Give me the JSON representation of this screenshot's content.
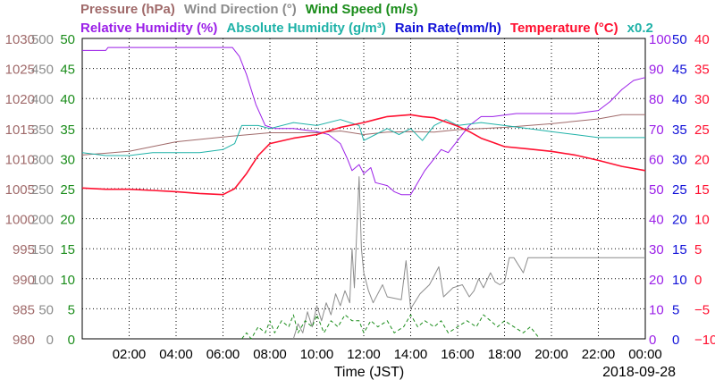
{
  "header": {
    "row1": [
      {
        "text": "Pressure (hPa)",
        "color": "#a06a6a"
      },
      {
        "text": "Wind Direction (°)",
        "color": "#8c8c8c"
      },
      {
        "text": "Wind Speed (m/s)",
        "color": "#1a8c1a"
      }
    ],
    "row2": [
      {
        "text": "Relative Humidity (%)",
        "color": "#9b1fe8"
      },
      {
        "text": "Absolute Humidity (g/m³)",
        "color": "#1fb2a8"
      },
      {
        "text": "Rain Rate(mm/h)",
        "color": "#1010d8"
      },
      {
        "text": "Temperature (°C)",
        "color": "#ff1030"
      },
      {
        "text": "x0.2",
        "color": "#1fb2a8"
      }
    ]
  },
  "chart_data": {
    "type": "line",
    "xlabel": "Time (JST)",
    "date": "2018-09-28",
    "x_ticks": [
      "02:00",
      "04:00",
      "06:00",
      "08:00",
      "10:00",
      "12:00",
      "14:00",
      "16:00",
      "18:00",
      "20:00",
      "22:00",
      "00:00"
    ],
    "x_range_hours": [
      0,
      24
    ],
    "left_axes": [
      {
        "name": "pressure",
        "color": "#a06a6a",
        "ticks": [
          980,
          985,
          990,
          995,
          1000,
          1005,
          1010,
          1015,
          1020,
          1025,
          1030
        ],
        "range": [
          980,
          1030
        ]
      },
      {
        "name": "wind_direction",
        "color": "#8c8c8c",
        "ticks": [
          0,
          50,
          100,
          150,
          200,
          250,
          300,
          350,
          400,
          450,
          500
        ],
        "range": [
          0,
          500
        ]
      },
      {
        "name": "wind_speed",
        "color": "#1a8c1a",
        "ticks": [
          0,
          5,
          10,
          15,
          20,
          25,
          30,
          35,
          40,
          45,
          50
        ],
        "range": [
          0,
          50
        ]
      }
    ],
    "right_axes": [
      {
        "name": "relative_humidity",
        "color": "#9b1fe8",
        "ticks": [
          0,
          10,
          20,
          30,
          40,
          50,
          60,
          70,
          80,
          90,
          100
        ],
        "range": [
          0,
          100
        ]
      },
      {
        "name": "rain_rate",
        "color": "#1010d8",
        "ticks": [
          0,
          5,
          10,
          15,
          20,
          25,
          30,
          35,
          40,
          45,
          50
        ],
        "range": [
          0,
          50
        ]
      },
      {
        "name": "temperature",
        "color": "#ff1030",
        "ticks": [
          "−10",
          "−5",
          "0",
          "5",
          "10",
          "15",
          "20",
          "25",
          "30",
          "35",
          "40"
        ],
        "range": [
          -10,
          40
        ]
      }
    ],
    "series": [
      {
        "name": "Pressure (hPa)",
        "color": "#a06a6a",
        "points": [
          [
            0.0,
            1010.6
          ],
          [
            2.0,
            1011.2
          ],
          [
            4.0,
            1012.8
          ],
          [
            6.0,
            1013.6
          ],
          [
            8.0,
            1014.3
          ],
          [
            10.0,
            1014.3
          ],
          [
            11.0,
            1014.6
          ],
          [
            12.0,
            1014.0
          ],
          [
            13.0,
            1014.4
          ],
          [
            14.0,
            1014.5
          ],
          [
            15.0,
            1014.4
          ],
          [
            16.0,
            1014.8
          ],
          [
            18.0,
            1015.2
          ],
          [
            20.0,
            1015.8
          ],
          [
            22.0,
            1016.6
          ],
          [
            23.0,
            1017.3
          ],
          [
            24.0,
            1017.3
          ]
        ]
      },
      {
        "name": "Relative Humidity (%)",
        "color": "#9b1fe8",
        "points": [
          [
            0.0,
            96
          ],
          [
            1.0,
            96
          ],
          [
            1.1,
            97
          ],
          [
            6.4,
            97
          ],
          [
            6.7,
            94
          ],
          [
            7.0,
            88
          ],
          [
            7.4,
            78
          ],
          [
            7.8,
            71
          ],
          [
            8.2,
            70
          ],
          [
            9.0,
            70
          ],
          [
            10.0,
            69
          ],
          [
            10.5,
            68
          ],
          [
            11.0,
            65
          ],
          [
            11.3,
            60
          ],
          [
            11.5,
            56
          ],
          [
            11.8,
            58
          ],
          [
            12.0,
            55
          ],
          [
            12.3,
            57
          ],
          [
            12.5,
            52
          ],
          [
            13.0,
            51
          ],
          [
            13.3,
            49
          ],
          [
            13.6,
            48
          ],
          [
            14.0,
            48
          ],
          [
            14.3,
            52
          ],
          [
            14.6,
            56
          ],
          [
            15.0,
            60
          ],
          [
            15.3,
            63
          ],
          [
            15.6,
            62
          ],
          [
            16.0,
            66
          ],
          [
            16.5,
            71
          ],
          [
            17.0,
            74
          ],
          [
            17.5,
            74
          ],
          [
            18.5,
            75
          ],
          [
            19.0,
            75
          ],
          [
            20.0,
            75
          ],
          [
            21.0,
            75
          ],
          [
            22.0,
            76
          ],
          [
            22.5,
            79
          ],
          [
            23.0,
            83
          ],
          [
            23.5,
            86
          ],
          [
            24.0,
            87
          ]
        ]
      },
      {
        "name": "Absolute Humidity (g/m³)",
        "color": "#1fb2a8",
        "points": [
          [
            0.0,
            62
          ],
          [
            1.0,
            61
          ],
          [
            2.0,
            61
          ],
          [
            3.0,
            62
          ],
          [
            4.0,
            62
          ],
          [
            5.0,
            62
          ],
          [
            6.0,
            63
          ],
          [
            6.5,
            65
          ],
          [
            6.8,
            71
          ],
          [
            7.5,
            71
          ],
          [
            8.0,
            70
          ],
          [
            9.0,
            72
          ],
          [
            10.0,
            71
          ],
          [
            11.0,
            73
          ],
          [
            11.8,
            71
          ],
          [
            12.0,
            66
          ],
          [
            12.5,
            68
          ],
          [
            13.0,
            70
          ],
          [
            13.5,
            68
          ],
          [
            14.0,
            70
          ],
          [
            14.5,
            66
          ],
          [
            15.0,
            71
          ],
          [
            15.5,
            73
          ],
          [
            16.0,
            71
          ],
          [
            17.0,
            72
          ],
          [
            18.0,
            71
          ],
          [
            19.0,
            70
          ],
          [
            20.0,
            69
          ],
          [
            21.0,
            68
          ],
          [
            22.0,
            67
          ],
          [
            23.0,
            67
          ],
          [
            24.0,
            67
          ]
        ]
      },
      {
        "name": "Temperature (°C)",
        "color": "#ff1030",
        "points": [
          [
            0.0,
            15.1
          ],
          [
            1.0,
            14.9
          ],
          [
            2.0,
            14.9
          ],
          [
            3.0,
            14.7
          ],
          [
            4.0,
            14.5
          ],
          [
            5.0,
            14.2
          ],
          [
            6.0,
            14.0
          ],
          [
            6.5,
            15.0
          ],
          [
            7.0,
            17.5
          ],
          [
            7.5,
            20.5
          ],
          [
            8.0,
            22.5
          ],
          [
            9.0,
            23.4
          ],
          [
            10.0,
            24.0
          ],
          [
            10.5,
            24.6
          ],
          [
            11.0,
            25.2
          ],
          [
            12.0,
            26.0
          ],
          [
            12.5,
            26.5
          ],
          [
            13.0,
            27.0
          ],
          [
            14.0,
            27.3
          ],
          [
            14.5,
            27.0
          ],
          [
            15.0,
            26.8
          ],
          [
            16.0,
            25.4
          ],
          [
            16.5,
            24.5
          ],
          [
            17.0,
            23.4
          ],
          [
            17.5,
            22.7
          ],
          [
            18.0,
            22.0
          ],
          [
            19.0,
            21.6
          ],
          [
            20.0,
            21.2
          ],
          [
            21.0,
            20.6
          ],
          [
            22.0,
            19.7
          ],
          [
            23.0,
            18.7
          ],
          [
            24.0,
            18.0
          ]
        ]
      },
      {
        "name": "Wind Direction (°)",
        "color": "#8c8c8c",
        "points": [
          [
            9.0,
            0
          ],
          [
            9.2,
            25
          ],
          [
            9.4,
            10
          ],
          [
            9.6,
            45
          ],
          [
            9.8,
            20
          ],
          [
            10.0,
            55
          ],
          [
            10.2,
            30
          ],
          [
            10.4,
            60
          ],
          [
            10.6,
            40
          ],
          [
            10.8,
            75
          ],
          [
            11.0,
            55
          ],
          [
            11.2,
            80
          ],
          [
            11.4,
            60
          ],
          [
            11.5,
            150
          ],
          [
            11.6,
            85
          ],
          [
            11.8,
            270
          ],
          [
            11.9,
            150
          ],
          [
            12.0,
            110
          ],
          [
            12.2,
            80
          ],
          [
            12.4,
            60
          ],
          [
            12.8,
            90
          ],
          [
            13.0,
            70
          ],
          [
            13.6,
            65
          ],
          [
            13.8,
            130
          ],
          [
            14.0,
            50
          ],
          [
            14.4,
            75
          ],
          [
            14.8,
            90
          ],
          [
            15.2,
            120
          ],
          [
            15.4,
            70
          ],
          [
            15.8,
            85
          ],
          [
            16.2,
            90
          ],
          [
            16.5,
            70
          ],
          [
            16.7,
            80
          ],
          [
            16.9,
            100
          ],
          [
            17.1,
            85
          ],
          [
            17.4,
            110
          ],
          [
            17.6,
            95
          ],
          [
            17.8,
            90
          ],
          [
            18.0,
            95
          ],
          [
            18.2,
            135
          ],
          [
            18.4,
            135
          ],
          [
            18.8,
            110
          ],
          [
            19.0,
            135
          ],
          [
            20.0,
            135
          ],
          [
            22.0,
            135
          ],
          [
            24.0,
            135
          ]
        ]
      },
      {
        "name": "Wind Speed (m/s)",
        "color": "#1a8c1a",
        "points": [
          [
            6.8,
            0
          ],
          [
            7.0,
            1
          ],
          [
            7.2,
            0
          ],
          [
            7.5,
            2
          ],
          [
            7.8,
            1
          ],
          [
            8.0,
            3
          ],
          [
            8.2,
            1
          ],
          [
            8.5,
            3
          ],
          [
            8.8,
            2
          ],
          [
            9.0,
            4
          ],
          [
            9.2,
            1
          ],
          [
            9.5,
            3
          ],
          [
            9.8,
            2
          ],
          [
            10.0,
            4
          ],
          [
            10.3,
            1
          ],
          [
            10.6,
            3
          ],
          [
            10.9,
            2
          ],
          [
            11.2,
            4
          ],
          [
            11.5,
            3
          ],
          [
            11.8,
            3
          ],
          [
            12.0,
            1
          ],
          [
            12.3,
            3
          ],
          [
            12.6,
            2
          ],
          [
            13.0,
            3
          ],
          [
            13.3,
            1
          ],
          [
            13.7,
            2
          ],
          [
            14.0,
            4
          ],
          [
            14.3,
            2
          ],
          [
            14.6,
            3
          ],
          [
            15.0,
            2
          ],
          [
            15.3,
            3
          ],
          [
            15.6,
            1
          ],
          [
            16.0,
            2
          ],
          [
            16.4,
            3
          ],
          [
            16.8,
            2
          ],
          [
            17.1,
            4
          ],
          [
            17.4,
            3
          ],
          [
            17.7,
            2
          ],
          [
            18.0,
            3
          ],
          [
            18.4,
            2
          ],
          [
            18.8,
            1
          ],
          [
            19.1,
            2
          ],
          [
            19.5,
            0
          ]
        ]
      }
    ]
  }
}
